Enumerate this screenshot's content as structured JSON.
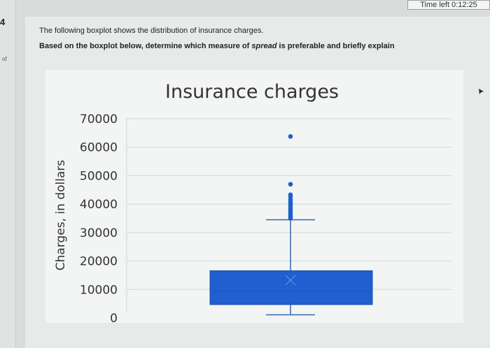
{
  "sidebar": {
    "question_number": "4",
    "of_label": "of"
  },
  "timer": {
    "text": "Time left 0:12:25"
  },
  "question": {
    "line1": "The following boxplot shows the distribution of insurance charges.",
    "line2_prefix": "Based on the boxplot below, determine which measure of ",
    "line2_emph": "spread",
    "line2_suffix": " is preferable and briefly explain"
  },
  "chart_data": {
    "type": "boxplot",
    "title": "Insurance charges",
    "ylabel": "Charges, in dollars",
    "xlabel": "",
    "ylim": [
      0,
      70000
    ],
    "yticks": [
      "0",
      "10000",
      "20000",
      "30000",
      "40000",
      "50000",
      "60000",
      "70000"
    ],
    "grid": true,
    "box": {
      "min": 1100,
      "q1": 4700,
      "median": 9400,
      "mean": 13300,
      "q3": 16600,
      "upper_whisker": 34500,
      "color": "#1f5fcf"
    },
    "outliers": [
      35000,
      35600,
      36300,
      37000,
      37700,
      38400,
      39200,
      40000,
      40800,
      41600,
      42600,
      43300,
      47000,
      63800
    ]
  },
  "colors": {
    "box": "#1f5fcf",
    "box_border": "#1a4fb0",
    "whisker": "#3567b0",
    "grid": "#cfd6d6",
    "outlier": "#1f5fcf"
  }
}
